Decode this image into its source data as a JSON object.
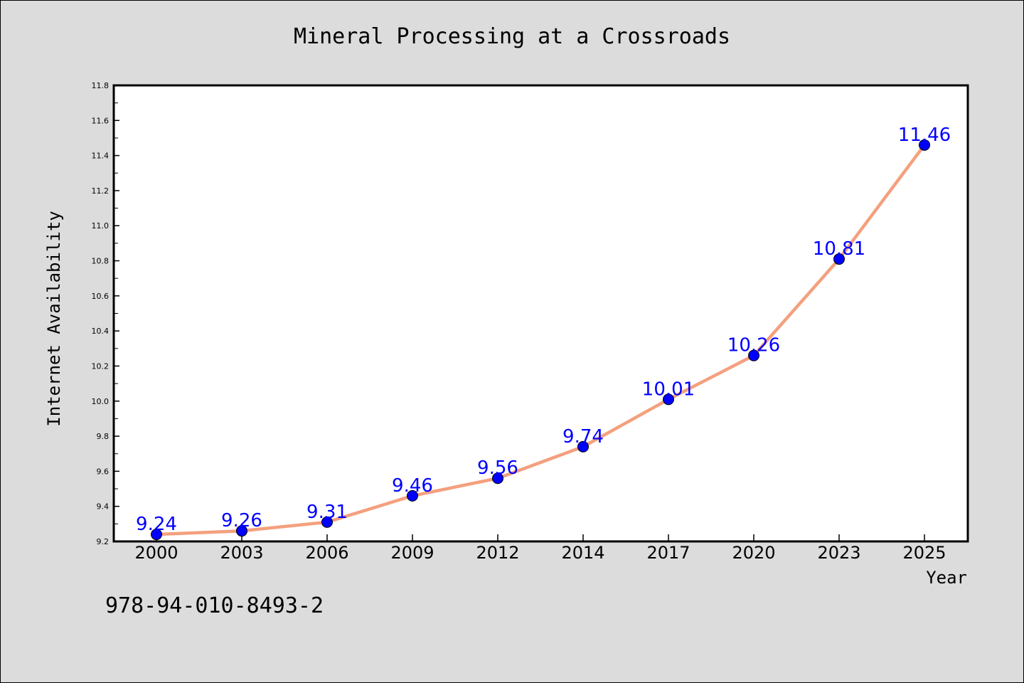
{
  "chart_data": {
    "type": "line",
    "title": "Mineral Processing at a Crossroads",
    "xlabel": "Year",
    "ylabel": "Internet Availability",
    "categories": [
      "2000",
      "2003",
      "2006",
      "2009",
      "2012",
      "2014",
      "2017",
      "2020",
      "2023",
      "2025"
    ],
    "values": [
      9.24,
      9.26,
      9.31,
      9.46,
      9.56,
      9.74,
      10.01,
      10.26,
      10.81,
      11.46
    ],
    "data_labels": [
      "9.24",
      "9.26",
      "9.31",
      "9.46",
      "9.56",
      "9.74",
      "10.01",
      "10.26",
      "10.81",
      "11.46"
    ],
    "ylim": [
      9.2,
      11.8
    ],
    "yticks": [
      "9.2",
      "9.4",
      "9.6",
      "9.8",
      "10.0",
      "10.2",
      "10.4",
      "10.6",
      "10.8",
      "11.0",
      "11.2",
      "11.4",
      "11.6",
      "11.8"
    ],
    "grid": false,
    "line_color": "#f4a07e",
    "marker_color": "#0000ff",
    "label_color": "#0000ff"
  },
  "footer": {
    "isbn": "978-94-010-8493-2"
  }
}
